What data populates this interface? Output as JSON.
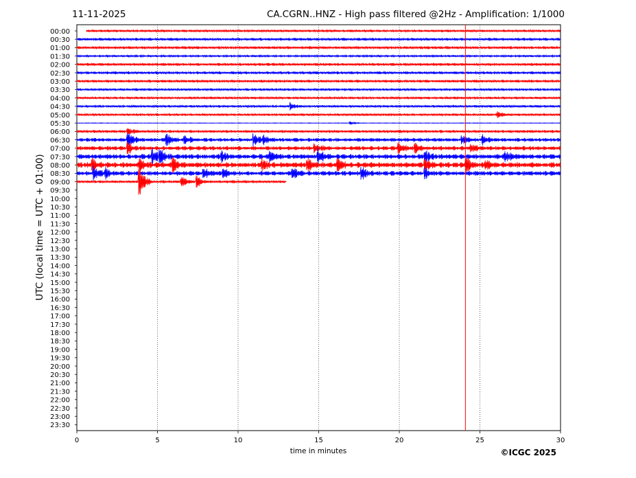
{
  "header": {
    "date": "11-11-2025",
    "title": "CA.CGRN..HNZ - High pass filtered @2Hz - Amplification: 1/1000"
  },
  "copyright": "©ICGC 2025",
  "chart_data": {
    "type": "line",
    "title": "CA.CGRN..HNZ - High pass filtered @2Hz - Amplification: 1/1000",
    "xlabel": "time in minutes",
    "ylabel": "UTC (local time = UTC + 01:00)",
    "xlim": [
      0,
      30
    ],
    "xticks": [
      0,
      5,
      10,
      15,
      20,
      25,
      30
    ],
    "xgrid": "dotted vertical at 5, 10, 15, 20, 25",
    "row_labels": [
      "00:00",
      "00:30",
      "01:00",
      "01:30",
      "02:00",
      "02:30",
      "03:00",
      "03:30",
      "04:00",
      "04:30",
      "05:00",
      "05:30",
      "06:00",
      "06:30",
      "07:00",
      "07:30",
      "08:00",
      "08:30",
      "09:00",
      "09:30",
      "10:00",
      "10:30",
      "11:00",
      "11:30",
      "12:00",
      "12:30",
      "13:00",
      "13:30",
      "14:00",
      "14:30",
      "15:00",
      "15:30",
      "16:00",
      "16:30",
      "17:00",
      "17:30",
      "18:00",
      "18:30",
      "19:00",
      "19:30",
      "20:00",
      "20:30",
      "21:00",
      "21:30",
      "22:00",
      "22:30",
      "23:00",
      "23:30"
    ],
    "colors": {
      "even_rows": "#ff0000",
      "odd_rows": "#0000ff"
    },
    "traces": [
      {
        "row": "00:00",
        "start_min": 0.6,
        "end_min": 30,
        "noise": 0.25,
        "events": []
      },
      {
        "row": "00:30",
        "start_min": 0,
        "end_min": 30,
        "noise": 0.3,
        "events": []
      },
      {
        "row": "01:00",
        "start_min": 0,
        "end_min": 30,
        "noise": 0.3,
        "events": []
      },
      {
        "row": "01:30",
        "start_min": 0,
        "end_min": 30,
        "noise": 0.2,
        "events": []
      },
      {
        "row": "02:00",
        "start_min": 0,
        "end_min": 30,
        "noise": 0.3,
        "events": []
      },
      {
        "row": "02:30",
        "start_min": 0,
        "end_min": 30,
        "noise": 0.3,
        "events": []
      },
      {
        "row": "03:00",
        "start_min": 0,
        "end_min": 30,
        "noise": 0.3,
        "events": []
      },
      {
        "row": "03:30",
        "start_min": 0,
        "end_min": 30,
        "noise": 0.25,
        "events": []
      },
      {
        "row": "04:00",
        "start_min": 0,
        "end_min": 30,
        "noise": 0.25,
        "events": []
      },
      {
        "row": "04:30",
        "start_min": 0,
        "end_min": 30,
        "noise": 0.25,
        "events": [
          {
            "t": 13.3,
            "amp": 0.8
          }
        ]
      },
      {
        "row": "05:00",
        "start_min": 0,
        "end_min": 30,
        "noise": 0.25,
        "events": [
          {
            "t": 26.1,
            "amp": 0.6
          }
        ]
      },
      {
        "row": "05:30",
        "start_min": 0,
        "end_min": 30,
        "noise": 0.05,
        "events": [
          {
            "t": 17.0,
            "amp": 0.4
          }
        ]
      },
      {
        "row": "06:00",
        "start_min": 0,
        "end_min": 30,
        "noise": 0.3,
        "events": [
          {
            "t": 3.2,
            "amp": 0.9
          }
        ]
      },
      {
        "row": "06:30",
        "start_min": 0,
        "end_min": 30,
        "noise": 0.4,
        "events": [
          {
            "t": 3.2,
            "amp": 1.8
          },
          {
            "t": 5.6,
            "amp": 1.3
          },
          {
            "t": 6.7,
            "amp": 1.1
          },
          {
            "t": 11.0,
            "amp": 1.4
          },
          {
            "t": 11.6,
            "amp": 1.0
          },
          {
            "t": 23.9,
            "amp": 0.9
          },
          {
            "t": 25.2,
            "amp": 0.9
          }
        ]
      },
      {
        "row": "07:00",
        "start_min": 0,
        "end_min": 30,
        "noise": 0.45,
        "events": [
          {
            "t": 3.2,
            "amp": 1.4
          },
          {
            "t": 14.8,
            "amp": 0.9
          },
          {
            "t": 20.0,
            "amp": 1.3
          },
          {
            "t": 21.0,
            "amp": 1.1
          },
          {
            "t": 24.5,
            "amp": 1.0
          }
        ]
      },
      {
        "row": "07:30",
        "start_min": 0,
        "end_min": 30,
        "noise": 0.55,
        "events": [
          {
            "t": 4.7,
            "amp": 1.8
          },
          {
            "t": 5.2,
            "amp": 1.2
          },
          {
            "t": 9.0,
            "amp": 1.1
          },
          {
            "t": 12.0,
            "amp": 1.1
          },
          {
            "t": 15.0,
            "amp": 1.8
          },
          {
            "t": 21.6,
            "amp": 1.3
          },
          {
            "t": 26.6,
            "amp": 1.2
          }
        ]
      },
      {
        "row": "08:00",
        "start_min": 0,
        "end_min": 30,
        "noise": 0.6,
        "events": [
          {
            "t": 1.0,
            "amp": 1.3
          },
          {
            "t": 3.9,
            "amp": 1.4
          },
          {
            "t": 6.0,
            "amp": 1.4
          },
          {
            "t": 11.5,
            "amp": 1.3
          },
          {
            "t": 14.3,
            "amp": 1.6
          },
          {
            "t": 16.2,
            "amp": 1.3
          },
          {
            "t": 21.6,
            "amp": 1.2
          },
          {
            "t": 24.2,
            "amp": 1.6
          },
          {
            "t": 25.4,
            "amp": 1.2
          }
        ]
      },
      {
        "row": "08:30",
        "start_min": 0,
        "end_min": 30,
        "noise": 0.5,
        "events": [
          {
            "t": 1.1,
            "amp": 1.5
          },
          {
            "t": 1.8,
            "amp": 1.1
          },
          {
            "t": 7.9,
            "amp": 1.2
          },
          {
            "t": 9.1,
            "amp": 1.0
          },
          {
            "t": 13.4,
            "amp": 1.1
          },
          {
            "t": 17.7,
            "amp": 1.3
          },
          {
            "t": 21.6,
            "amp": 1.2
          }
        ]
      },
      {
        "row": "09:00",
        "start_min": 0,
        "end_min": 13,
        "noise": 0.3,
        "events": [
          {
            "t": 3.9,
            "amp": 4.5
          },
          {
            "t": 6.5,
            "amp": 1.2
          },
          {
            "t": 7.5,
            "amp": 1.2
          }
        ]
      }
    ],
    "spikes": [
      {
        "row": "00:00",
        "t": 24.1,
        "to_row": "23:30",
        "color": "#ff0000"
      }
    ]
  }
}
